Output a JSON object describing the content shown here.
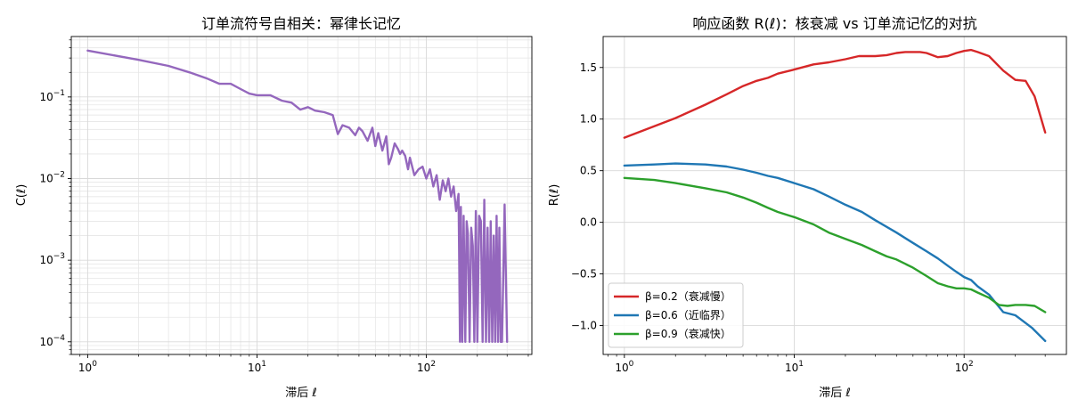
{
  "chart_data": [
    {
      "type": "line",
      "title": "订单流符号自相关：幂律长记忆",
      "xlabel": "滞后 ℓ",
      "ylabel": "C(ℓ)",
      "xscale": "log",
      "yscale": "log",
      "xlim": [
        0.8,
        420
      ],
      "ylim": [
        7e-05,
        0.55
      ],
      "grid": "major and minor, on",
      "xticks": [
        {
          "value": 1,
          "base": "10",
          "exp": "0"
        },
        {
          "value": 10,
          "base": "10",
          "exp": "1"
        },
        {
          "value": 100,
          "base": "10",
          "exp": "2"
        }
      ],
      "yticks": [
        {
          "value": 0.0001,
          "base": "10",
          "exp": "−4"
        },
        {
          "value": 0.001,
          "base": "10",
          "exp": "−3"
        },
        {
          "value": 0.01,
          "base": "10",
          "exp": "−2"
        },
        {
          "value": 0.1,
          "base": "10",
          "exp": "−1"
        }
      ],
      "series": [
        {
          "color": "#9467bd",
          "x": [
            1,
            2,
            3,
            4,
            5,
            6,
            7,
            8,
            9,
            10,
            12,
            14,
            16,
            18,
            20,
            22,
            25,
            28,
            30,
            32,
            35,
            38,
            40,
            42,
            45,
            48,
            50,
            52,
            55,
            58,
            60,
            62,
            65,
            68,
            70,
            72,
            75,
            78,
            80,
            85,
            90,
            95,
            100,
            105,
            110,
            115,
            120,
            125,
            130,
            135,
            140,
            145,
            150,
            155,
            158,
            160,
            163,
            166,
            170,
            173,
            176,
            180,
            184,
            188,
            192,
            196,
            200,
            205,
            210,
            215,
            220,
            225,
            230,
            235,
            240,
            245,
            250,
            255,
            260,
            265,
            270,
            275,
            280,
            290,
            300
          ],
          "y": [
            0.37,
            0.285,
            0.24,
            0.2,
            0.17,
            0.145,
            0.145,
            0.125,
            0.11,
            0.105,
            0.105,
            0.09,
            0.085,
            0.07,
            0.075,
            0.068,
            0.065,
            0.06,
            0.035,
            0.045,
            0.042,
            0.034,
            0.042,
            0.038,
            0.029,
            0.042,
            0.025,
            0.036,
            0.022,
            0.033,
            0.015,
            0.018,
            0.027,
            0.023,
            0.02,
            0.022,
            0.019,
            0.013,
            0.018,
            0.011,
            0.013,
            0.014,
            0.01,
            0.013,
            0.008,
            0.011,
            0.0055,
            0.0095,
            0.007,
            0.01,
            0.006,
            0.008,
            0.004,
            0.0065,
            0.0001,
            0.0045,
            0.0001,
            0.0035,
            0.0001,
            0.003,
            0.0021,
            0.0001,
            0.0025,
            0.0015,
            0.0001,
            0.004,
            0.0001,
            0.0035,
            0.003,
            0.0001,
            0.0055,
            0.0001,
            0.0025,
            0.0001,
            0.003,
            0.0001,
            0.002,
            0.0001,
            0.0035,
            0.0001,
            0.0025,
            0.0001,
            0.0001,
            0.0048,
            0.0001
          ]
        }
      ]
    },
    {
      "type": "line",
      "title": "响应函数 R(ℓ)：核衰减 vs 订单流记忆的对抗",
      "xlabel": "滞后 ℓ",
      "ylabel": "R(ℓ)",
      "xscale": "log",
      "yscale": "linear",
      "xlim": [
        0.75,
        400
      ],
      "ylim": [
        -1.28,
        1.8
      ],
      "grid": "major, on",
      "legend_position": "lower-left",
      "xticks": [
        {
          "value": 1,
          "base": "10",
          "exp": "0"
        },
        {
          "value": 10,
          "base": "10",
          "exp": "1"
        },
        {
          "value": 100,
          "base": "10",
          "exp": "2"
        }
      ],
      "yticks": [
        {
          "value": -1.0,
          "label": "−1.0"
        },
        {
          "value": -0.5,
          "label": "−0.5"
        },
        {
          "value": 0.0,
          "label": "0.0"
        },
        {
          "value": 0.5,
          "label": "0.5"
        },
        {
          "value": 1.0,
          "label": "1.0"
        },
        {
          "value": 1.5,
          "label": "1.5"
        }
      ],
      "series": [
        {
          "name": "β=0.2（衰减慢）",
          "color": "#d62728",
          "x": [
            1,
            1.5,
            2,
            3,
            4,
            5,
            6,
            7,
            8,
            10,
            13,
            16,
            20,
            24,
            30,
            35,
            40,
            45,
            50,
            55,
            60,
            70,
            80,
            90,
            100,
            110,
            120,
            140,
            170,
            200,
            230,
            260,
            300
          ],
          "y": [
            0.82,
            0.93,
            1.01,
            1.14,
            1.24,
            1.32,
            1.37,
            1.4,
            1.44,
            1.48,
            1.53,
            1.55,
            1.58,
            1.61,
            1.61,
            1.62,
            1.64,
            1.65,
            1.65,
            1.65,
            1.64,
            1.6,
            1.61,
            1.64,
            1.66,
            1.67,
            1.65,
            1.61,
            1.47,
            1.38,
            1.37,
            1.22,
            0.87
          ]
        },
        {
          "name": "β=0.6（近临界）",
          "color": "#1f77b4",
          "x": [
            1,
            1.5,
            2,
            3,
            4,
            5,
            6,
            7,
            8,
            10,
            13,
            16,
            20,
            25,
            30,
            40,
            50,
            60,
            70,
            80,
            90,
            100,
            110,
            120,
            140,
            170,
            200,
            250,
            300
          ],
          "y": [
            0.55,
            0.56,
            0.57,
            0.56,
            0.54,
            0.51,
            0.48,
            0.45,
            0.43,
            0.38,
            0.32,
            0.25,
            0.17,
            0.1,
            0.02,
            -0.1,
            -0.2,
            -0.28,
            -0.35,
            -0.42,
            -0.48,
            -0.53,
            -0.56,
            -0.62,
            -0.7,
            -0.87,
            -0.9,
            -1.02,
            -1.15
          ]
        },
        {
          "name": "β=0.9（衰减快）",
          "color": "#2ca02c",
          "x": [
            1,
            1.5,
            2,
            3,
            4,
            5,
            6,
            7,
            8,
            10,
            13,
            16,
            20,
            25,
            30,
            35,
            40,
            50,
            60,
            70,
            80,
            90,
            100,
            110,
            120,
            140,
            160,
            180,
            200,
            230,
            260,
            300
          ],
          "y": [
            0.43,
            0.41,
            0.38,
            0.33,
            0.29,
            0.24,
            0.19,
            0.14,
            0.1,
            0.05,
            -0.02,
            -0.1,
            -0.16,
            -0.22,
            -0.28,
            -0.33,
            -0.36,
            -0.44,
            -0.52,
            -0.59,
            -0.62,
            -0.64,
            -0.64,
            -0.65,
            -0.68,
            -0.73,
            -0.8,
            -0.81,
            -0.8,
            -0.8,
            -0.81,
            -0.87
          ]
        }
      ]
    }
  ]
}
